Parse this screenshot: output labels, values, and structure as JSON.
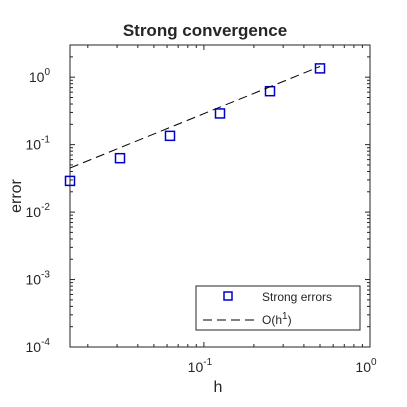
{
  "chart_data": {
    "type": "scatter",
    "title": "Strong convergence",
    "xlabel": "h",
    "ylabel": "error",
    "xscale": "log",
    "yscale": "log",
    "xlim": [
      0.015625,
      1
    ],
    "ylim": [
      0.0001,
      3
    ],
    "grid": false,
    "legend_position": "bottom-right",
    "x_ticks": [
      {
        "base": "10",
        "exp": "-1",
        "value": 0.1
      },
      {
        "base": "10",
        "exp": "0",
        "value": 1
      }
    ],
    "y_ticks": [
      {
        "base": "10",
        "exp": "-4",
        "value": 0.0001
      },
      {
        "base": "10",
        "exp": "-3",
        "value": 0.001
      },
      {
        "base": "10",
        "exp": "-2",
        "value": 0.01
      },
      {
        "base": "10",
        "exp": "-1",
        "value": 0.1
      },
      {
        "base": "10",
        "exp": "0",
        "value": 1
      }
    ],
    "series": [
      {
        "name": "Strong errors",
        "style": "square-markers",
        "color": "#0000cc",
        "x": [
          0.015625,
          0.03125,
          0.0625,
          0.125,
          0.25,
          0.5
        ],
        "y": [
          0.029,
          0.063,
          0.135,
          0.29,
          0.62,
          1.35
        ]
      },
      {
        "name": "O(h1)",
        "legend_base": "O(h",
        "legend_exp": "1",
        "legend_close": ")",
        "style": "dashed-line",
        "color": "#000000",
        "x": [
          0.015625,
          0.5
        ],
        "y": [
          0.045,
          1.44
        ]
      }
    ]
  }
}
